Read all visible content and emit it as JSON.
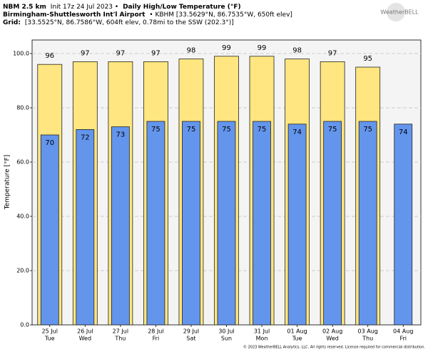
{
  "header": {
    "model": "NBM 2.5 km",
    "init": "Init 17z 24 Jul 2023 •",
    "product": "Daily High/Low Temperature (°F)",
    "station": "Birmingham-Shuttlesworth Int'l Airport",
    "station_info": "• KBHM [33.5629°N, 86.7535°W, 650ft elev]",
    "grid_label": "Grid:",
    "grid_info": "[33.5525°N, 86.7586°W, 604ft elev, 0.78mi to the SSW (202.3°)]",
    "logo": "WeatherBELL"
  },
  "footer": "© 2023 WeatherBELL Analytics, LLC. All rights reserved. License required for commercial distribution.",
  "chart_data": {
    "type": "bar",
    "y_label": "Temperature [°F]",
    "categories": [
      "25 Jul",
      "26 Jul",
      "27 Jul",
      "28 Jul",
      "29 Jul",
      "30 Jul",
      "31 Jul",
      "01 Aug",
      "02 Aug",
      "03 Aug",
      "04 Aug"
    ],
    "category_sublabels": [
      "Tue",
      "Wed",
      "Thu",
      "Fri",
      "Sat",
      "Sun",
      "Mon",
      "Tue",
      "Wed",
      "Thu",
      "Fri"
    ],
    "series": [
      {
        "name": "High",
        "color": "#ffe680",
        "values": [
          96,
          97,
          97,
          97,
          98,
          99,
          99,
          98,
          97,
          95,
          null
        ]
      },
      {
        "name": "Low",
        "color": "#6495ed",
        "values": [
          70,
          72,
          73,
          75,
          75,
          75,
          75,
          74,
          75,
          75,
          74
        ]
      }
    ],
    "ylim": [
      0,
      105
    ],
    "yticks": [
      {
        "value": 0,
        "label": "0.0"
      },
      {
        "value": 20,
        "label": "20.0"
      },
      {
        "value": 40,
        "label": "40.0"
      },
      {
        "value": 60,
        "label": "60.0"
      },
      {
        "value": 80,
        "label": "80.0"
      },
      {
        "value": 100,
        "label": "100.0"
      }
    ],
    "grid": true
  }
}
